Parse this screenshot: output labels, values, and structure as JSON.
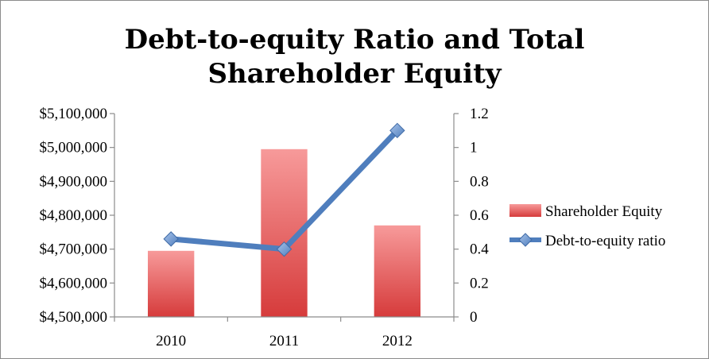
{
  "chart_data": {
    "type": "bar",
    "title": "Debt-to-equity Ratio and Total Shareholder Equity",
    "title_lines": [
      "Debt-to-equity Ratio and Total",
      "Shareholder Equity"
    ],
    "categories": [
      "2010",
      "2011",
      "2012"
    ],
    "series": [
      {
        "name": "Shareholder Equity",
        "type": "bar",
        "axis": "left",
        "values": [
          4695000,
          4995000,
          4770000
        ],
        "color": "#e05555"
      },
      {
        "name": "Debt-to-equity ratio",
        "type": "line",
        "axis": "right",
        "values": [
          0.46,
          0.4,
          1.1
        ],
        "color": "#4f7ebd",
        "marker": "diamond"
      }
    ],
    "y_left": {
      "min": 4500000,
      "max": 5100000,
      "step": 100000,
      "tick_labels": [
        "$4,500,000",
        "$4,600,000",
        "$4,700,000",
        "$4,800,000",
        "$4,900,000",
        "$5,000,000",
        "$5,100,000"
      ]
    },
    "y_right": {
      "min": 0,
      "max": 1.2,
      "step": 0.2,
      "tick_labels": [
        "0",
        "0.2",
        "0.4",
        "0.6",
        "0.8",
        "1",
        "1.2"
      ]
    },
    "grid": false,
    "legend": {
      "position": "right",
      "entries": [
        "Shareholder Equity",
        "Debt-to-equity ratio"
      ]
    },
    "xlabel": "",
    "ylabel": ""
  }
}
